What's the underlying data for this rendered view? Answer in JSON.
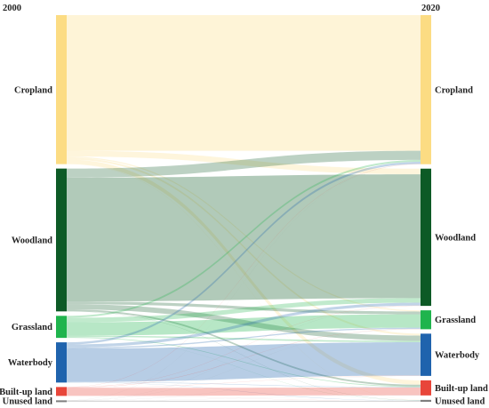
{
  "chart_data": {
    "type": "sankey",
    "title": "",
    "columns": [
      "2000",
      "2020"
    ],
    "categories": [
      "Cropland",
      "Woodland",
      "Grassland",
      "Waterbody",
      "Built-up land",
      "Unused land"
    ],
    "colors": {
      "Cropland": "#fcdc83",
      "Woodland": "#0d5a26",
      "Grassland": "#1fb44d",
      "Waterbody": "#1f63ad",
      "Built-up land": "#e8463a",
      "Unused land": "#7e7e7e"
    },
    "flows": [
      {
        "source": "Cropland",
        "target": "Cropland",
        "value": 2850
      },
      {
        "source": "Cropland",
        "target": "Woodland",
        "value": 120
      },
      {
        "source": "Cropland",
        "target": "Grassland",
        "value": 25
      },
      {
        "source": "Cropland",
        "target": "Waterbody",
        "value": 40
      },
      {
        "source": "Cropland",
        "target": "Built-up land",
        "value": 90
      },
      {
        "source": "Cropland",
        "target": "Unused land",
        "value": 5
      },
      {
        "source": "Woodland",
        "target": "Cropland",
        "value": 190
      },
      {
        "source": "Woodland",
        "target": "Woodland",
        "value": 2600
      },
      {
        "source": "Woodland",
        "target": "Grassland",
        "value": 60
      },
      {
        "source": "Woodland",
        "target": "Waterbody",
        "value": 110
      },
      {
        "source": "Woodland",
        "target": "Built-up land",
        "value": 35
      },
      {
        "source": "Woodland",
        "target": "Unused land",
        "value": 5
      },
      {
        "source": "Grassland",
        "target": "Cropland",
        "value": 40
      },
      {
        "source": "Grassland",
        "target": "Woodland",
        "value": 95
      },
      {
        "source": "Grassland",
        "target": "Grassland",
        "value": 280
      },
      {
        "source": "Grassland",
        "target": "Waterbody",
        "value": 30
      },
      {
        "source": "Grassland",
        "target": "Built-up land",
        "value": 15
      },
      {
        "source": "Grassland",
        "target": "Unused land",
        "value": 3
      },
      {
        "source": "Waterbody",
        "target": "Cropland",
        "value": 45
      },
      {
        "source": "Waterbody",
        "target": "Woodland",
        "value": 60
      },
      {
        "source": "Waterbody",
        "target": "Grassland",
        "value": 25
      },
      {
        "source": "Waterbody",
        "target": "Waterbody",
        "value": 700
      },
      {
        "source": "Waterbody",
        "target": "Built-up land",
        "value": 10
      },
      {
        "source": "Waterbody",
        "target": "Unused land",
        "value": 5
      },
      {
        "source": "Built-up land",
        "target": "Cropland",
        "value": 5
      },
      {
        "source": "Built-up land",
        "target": "Woodland",
        "value": 5
      },
      {
        "source": "Built-up land",
        "target": "Grassland",
        "value": 5
      },
      {
        "source": "Built-up land",
        "target": "Waterbody",
        "value": 5
      },
      {
        "source": "Built-up land",
        "target": "Built-up land",
        "value": 165
      },
      {
        "source": "Built-up land",
        "target": "Unused land",
        "value": 2
      },
      {
        "source": "Unused land",
        "target": "Cropland",
        "value": 2
      },
      {
        "source": "Unused land",
        "target": "Woodland",
        "value": 2
      },
      {
        "source": "Unused land",
        "target": "Grassland",
        "value": 2
      },
      {
        "source": "Unused land",
        "target": "Waterbody",
        "value": 2
      },
      {
        "source": "Unused land",
        "target": "Built-up land",
        "value": 2
      },
      {
        "source": "Unused land",
        "target": "Unused land",
        "value": 20
      }
    ]
  }
}
